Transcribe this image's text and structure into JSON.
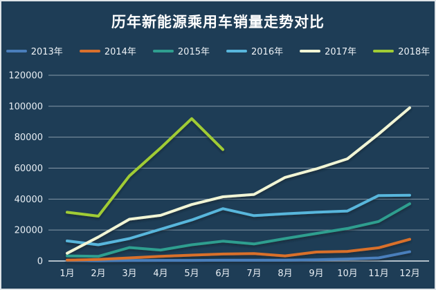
{
  "title": "历年新能源乘用车销量走势对比",
  "colors": {
    "background": "#1e3d56",
    "frame_border": "#dfe4e8",
    "grid": "#dee8ee",
    "axis_text": "#e9eff4",
    "title_text": "#ffffff"
  },
  "chart_data": {
    "type": "line",
    "title": "历年新能源乘用车销量走势对比",
    "categories": [
      "1月",
      "2月",
      "3月",
      "4月",
      "5月",
      "6月",
      "7月",
      "8月",
      "9月",
      "10月",
      "11月",
      "12月"
    ],
    "series": [
      {
        "name": "2013年",
        "color": "#4a7ebb",
        "values": [
          300,
          200,
          300,
          400,
          400,
          500,
          500,
          600,
          800,
          1300,
          2000,
          6000
        ]
      },
      {
        "name": "2014年",
        "color": "#d9702c",
        "values": [
          600,
          1000,
          2000,
          3000,
          3800,
          4500,
          4800,
          3300,
          5800,
          6200,
          8500,
          14000
        ]
      },
      {
        "name": "2015年",
        "color": "#2f9e8f",
        "values": [
          3300,
          3000,
          8700,
          7100,
          10500,
          12800,
          11000,
          14500,
          17800,
          21000,
          25500,
          37000
        ]
      },
      {
        "name": "2016年",
        "color": "#58b6dc",
        "values": [
          13000,
          10500,
          14500,
          20500,
          26500,
          33800,
          29300,
          30500,
          31500,
          32300,
          42300,
          42500
        ]
      },
      {
        "name": "2017年",
        "color": "#f1f5d5",
        "values": [
          5000,
          15500,
          27000,
          29500,
          36500,
          41500,
          43000,
          54000,
          59500,
          66000,
          82000,
          99000
        ]
      },
      {
        "name": "2018年",
        "color": "#a0cc35",
        "values": [
          31500,
          29000,
          55000,
          73000,
          92000,
          72000,
          null,
          null,
          null,
          null,
          null,
          null
        ]
      }
    ],
    "ylim": [
      0,
      120000
    ],
    "ytick_interval": 20000,
    "ytick_labels": [
      "0",
      "20000",
      "40000",
      "60000",
      "80000",
      "100000",
      "120000"
    ],
    "grid": true,
    "legend_position": "top",
    "xlabel": "",
    "ylabel": ""
  }
}
